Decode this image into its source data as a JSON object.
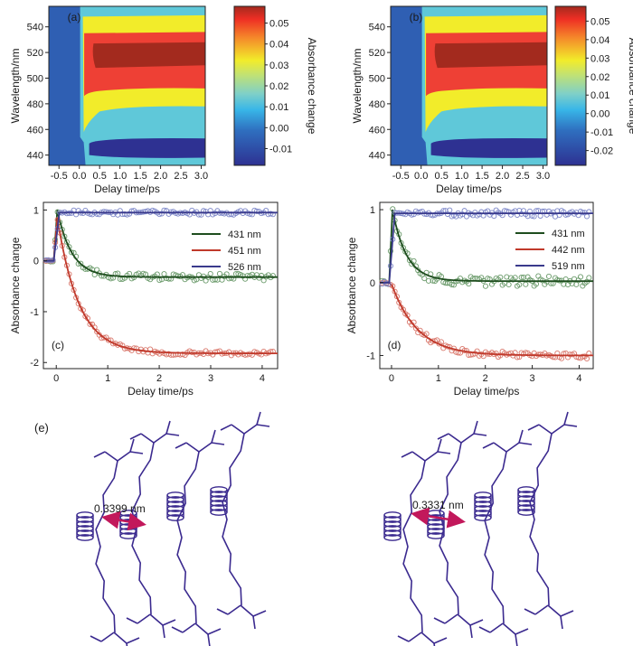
{
  "chart_data": [
    {
      "panel": "(a)",
      "type": "heatmap",
      "xlabel": "Delay time/ps",
      "ylabel": "Wavelength/nm",
      "xticks": [
        "-0.5",
        "0.0",
        "0.5",
        "1.0",
        "1.5",
        "2.0",
        "2.5",
        "3.0"
      ],
      "yticks": [
        "440",
        "460",
        "480",
        "500",
        "520",
        "540"
      ],
      "xlim": [
        -0.75,
        3.1
      ],
      "ylim": [
        432,
        556
      ],
      "colorbar_label": "Absorbance change",
      "colorbar_ticks": [
        "0.05",
        "0.04",
        "0.03",
        "0.02",
        "0.01",
        "0.00",
        "-0.01"
      ],
      "colorbar_range": [
        -0.018,
        0.058
      ],
      "colors": [
        "#2e3192",
        "#2f5fb3",
        "#5fc8d9",
        "#f2ec2a",
        "#ee4035",
        "#a32a1e"
      ]
    },
    {
      "panel": "(b)",
      "type": "heatmap",
      "xlabel": "Delay time/ps",
      "ylabel": "Wavelength/nm",
      "xticks": [
        "-0.5",
        "0.0",
        "0.5",
        "1.0",
        "1.5",
        "2.0",
        "2.5",
        "3.0"
      ],
      "yticks": [
        "440",
        "460",
        "480",
        "500",
        "520",
        "540"
      ],
      "xlim": [
        -0.75,
        3.1
      ],
      "ylim": [
        432,
        556
      ],
      "colorbar_label": "Absorbance change",
      "colorbar_ticks": [
        "0.05",
        "0.04",
        "0.03",
        "0.02",
        "0.01",
        "0.00",
        "-0.01",
        "-0.02"
      ],
      "colorbar_range": [
        -0.028,
        0.058
      ],
      "colors": [
        "#2e3192",
        "#2f5fb3",
        "#5fc8d9",
        "#f2ec2a",
        "#ee4035",
        "#a32a1e"
      ]
    },
    {
      "panel": "(c)",
      "type": "line",
      "xlabel": "Delay time/ps",
      "ylabel": "Absorbance change",
      "xticks": [
        0,
        1,
        2,
        3,
        4
      ],
      "yticks": [
        -2,
        -1,
        0,
        1
      ],
      "xlim": [
        -0.25,
        4.3
      ],
      "ylim": [
        -2.12,
        1.15
      ],
      "series": [
        {
          "name": "431 nm",
          "color": "#1e4d1e",
          "marker_color": "#6a9a6a",
          "rise": 0.02,
          "peak": 1.0,
          "tau": 0.28,
          "plateau": -0.32
        },
        {
          "name": "451 nm",
          "color": "#c0392b",
          "marker_color": "#d9776b",
          "rise": 0.02,
          "peak": 0.85,
          "tau": 0.42,
          "plateau": -1.82
        },
        {
          "name": "526 nm",
          "color": "#3a3a8c",
          "marker_color": "#7c86c8",
          "rise": 0.06,
          "peak": 0.95,
          "tau": 0.3,
          "plateau": 0.95
        }
      ]
    },
    {
      "panel": "(d)",
      "type": "line",
      "xlabel": "Delay time/ps",
      "ylabel": "Absorbance change",
      "xticks": [
        0,
        1,
        2,
        3,
        4
      ],
      "yticks": [
        -1,
        0,
        1
      ],
      "xlim": [
        -0.25,
        4.3
      ],
      "ylim": [
        -1.18,
        1.1
      ],
      "series": [
        {
          "name": "431 nm",
          "color": "#1e4d1e",
          "marker_color": "#6a9a6a",
          "rise": 0.02,
          "peak": 1.0,
          "tau": 0.3,
          "plateau": 0.02
        },
        {
          "name": "442 nm",
          "color": "#c0392b",
          "marker_color": "#d9776b",
          "rise": 0.02,
          "peak": -0.05,
          "tau": 0.55,
          "plateau": -1.0
        },
        {
          "name": "519 nm",
          "color": "#3a3a8c",
          "marker_color": "#7c86c8",
          "rise": 0.07,
          "peak": 0.95,
          "tau": 0.3,
          "plateau": 0.95
        }
      ]
    }
  ],
  "figure": {
    "panel_e_label": "(e)",
    "distance_left": "0.3399 nm",
    "distance_right": "0.3331 nm",
    "structure_color": "#3b2a8f",
    "arrow_color": "#c2185b"
  }
}
